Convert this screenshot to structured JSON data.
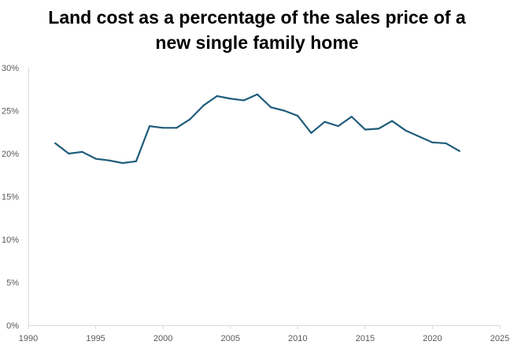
{
  "chart_data": {
    "type": "line",
    "title_lines": [
      "Land cost as a percentage of the sales price of a",
      "new single family home"
    ],
    "xlabel": "",
    "ylabel": "",
    "xlim": [
      1990,
      2025
    ],
    "ylim": [
      0,
      30
    ],
    "x_ticks": [
      1990,
      1995,
      2000,
      2005,
      2010,
      2015,
      2020,
      2025
    ],
    "y_ticks": [
      0,
      5,
      10,
      15,
      20,
      25,
      30
    ],
    "y_tick_labels": [
      "0%",
      "5%",
      "10%",
      "15%",
      "20%",
      "25%",
      "30%"
    ],
    "x_tick_labels": [
      "1990",
      "1995",
      "2000",
      "2005",
      "2010",
      "2015",
      "2020",
      "2025"
    ],
    "grid": false,
    "legend": "none",
    "series": [
      {
        "color": "#1f5c7a",
        "x": [
          1992,
          1993,
          1994,
          1995,
          1996,
          1997,
          1998,
          1999,
          2000,
          2001,
          2002,
          2003,
          2004,
          2005,
          2006,
          2007,
          2008,
          2009,
          2010,
          2011,
          2012,
          2013,
          2014,
          2015,
          2016,
          2017,
          2018,
          2019,
          2020,
          2021,
          2022
        ],
        "y": [
          21.2,
          20.0,
          20.2,
          19.4,
          19.2,
          18.9,
          19.1,
          23.2,
          23.0,
          23.0,
          24.0,
          25.6,
          26.7,
          26.4,
          26.2,
          26.9,
          25.4,
          25.0,
          24.4,
          22.4,
          23.7,
          23.2,
          24.3,
          22.8,
          22.9,
          23.8,
          22.7,
          22.0,
          21.3,
          21.2,
          20.3
        ]
      }
    ]
  }
}
